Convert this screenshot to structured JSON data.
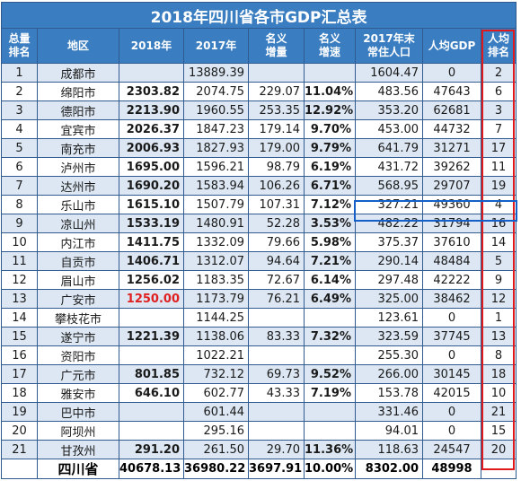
{
  "title": "2018年四川省各市GDP汇总表",
  "headers": {
    "rank": [
      "总量",
      "排名"
    ],
    "region": "地区",
    "gdp2018": "2018年",
    "gdp2017": "2017年",
    "nominal_increase": [
      "名义",
      "增量"
    ],
    "nominal_growth": [
      "名义",
      "增速"
    ],
    "population": [
      "2017年末",
      "常住人口"
    ],
    "per_capita": "人均GDP",
    "per_capita_rank": [
      "人均",
      "排名"
    ]
  },
  "rows": [
    {
      "rank": "1",
      "region": "成都市",
      "gdp2018": "",
      "gdp2017": "13889.39",
      "increase": "",
      "growth": "",
      "population": "1604.47",
      "per_capita": "0",
      "pc_rank": "2"
    },
    {
      "rank": "2",
      "region": "绵阳市",
      "gdp2018": "2303.82",
      "gdp2017": "2074.75",
      "increase": "229.07",
      "growth": "11.04%",
      "population": "483.56",
      "per_capita": "47643",
      "pc_rank": "6"
    },
    {
      "rank": "3",
      "region": "德阳市",
      "gdp2018": "2213.90",
      "gdp2017": "1960.55",
      "increase": "253.35",
      "growth": "12.92%",
      "population": "353.20",
      "per_capita": "62681",
      "pc_rank": "3"
    },
    {
      "rank": "4",
      "region": "宜宾市",
      "gdp2018": "2026.37",
      "gdp2017": "1847.23",
      "increase": "179.14",
      "growth": "9.70%",
      "population": "453.00",
      "per_capita": "44732",
      "pc_rank": "7"
    },
    {
      "rank": "5",
      "region": "南充市",
      "gdp2018": "2006.93",
      "gdp2017": "1827.93",
      "increase": "179.00",
      "growth": "9.79%",
      "population": "641.79",
      "per_capita": "31271",
      "pc_rank": "17"
    },
    {
      "rank": "6",
      "region": "泸州市",
      "gdp2018": "1695.00",
      "gdp2017": "1596.21",
      "increase": "98.79",
      "growth": "6.19%",
      "population": "431.72",
      "per_capita": "39262",
      "pc_rank": "11"
    },
    {
      "rank": "7",
      "region": "达州市",
      "gdp2018": "1690.20",
      "gdp2017": "1583.94",
      "increase": "106.26",
      "growth": "6.71%",
      "population": "568.95",
      "per_capita": "29707",
      "pc_rank": "19"
    },
    {
      "rank": "8",
      "region": "乐山市",
      "gdp2018": "1615.10",
      "gdp2017": "1507.79",
      "increase": "107.31",
      "growth": "7.12%",
      "population": "327.21",
      "per_capita": "49360",
      "pc_rank": "4"
    },
    {
      "rank": "9",
      "region": "凉山州",
      "gdp2018": "1533.19",
      "gdp2017": "1480.91",
      "increase": "52.28",
      "growth": "3.53%",
      "population": "482.22",
      "per_capita": "31794",
      "pc_rank": "16"
    },
    {
      "rank": "10",
      "region": "内江市",
      "gdp2018": "1411.75",
      "gdp2017": "1332.09",
      "increase": "79.66",
      "growth": "5.98%",
      "population": "375.37",
      "per_capita": "37610",
      "pc_rank": "14"
    },
    {
      "rank": "11",
      "region": "自贡市",
      "gdp2018": "1406.71",
      "gdp2017": "1312.07",
      "increase": "94.64",
      "growth": "7.21%",
      "population": "290.14",
      "per_capita": "48484",
      "pc_rank": "5"
    },
    {
      "rank": "12",
      "region": "眉山市",
      "gdp2018": "1256.02",
      "gdp2017": "1183.35",
      "increase": "72.67",
      "growth": "6.14%",
      "population": "297.48",
      "per_capita": "42222",
      "pc_rank": "9"
    },
    {
      "rank": "13",
      "region": "广安市",
      "gdp2018": "1250.00",
      "gdp2017": "1173.79",
      "increase": "76.21",
      "growth": "6.49%",
      "population": "325.00",
      "per_capita": "38462",
      "pc_rank": "12",
      "highlight_gdp2018": true
    },
    {
      "rank": "14",
      "region": "攀枝花市",
      "gdp2018": "",
      "gdp2017": "1144.25",
      "increase": "",
      "growth": "",
      "population": "123.61",
      "per_capita": "0",
      "pc_rank": "1"
    },
    {
      "rank": "15",
      "region": "遂宁市",
      "gdp2018": "1221.39",
      "gdp2017": "1138.06",
      "increase": "83.33",
      "growth": "7.32%",
      "population": "323.59",
      "per_capita": "37745",
      "pc_rank": "13"
    },
    {
      "rank": "16",
      "region": "资阳市",
      "gdp2018": "",
      "gdp2017": "1022.21",
      "increase": "",
      "growth": "",
      "population": "255.30",
      "per_capita": "0",
      "pc_rank": "8"
    },
    {
      "rank": "17",
      "region": "广元市",
      "gdp2018": "801.85",
      "gdp2017": "732.12",
      "increase": "69.73",
      "growth": "9.52%",
      "population": "266.00",
      "per_capita": "30145",
      "pc_rank": "18"
    },
    {
      "rank": "18",
      "region": "雅安市",
      "gdp2018": "646.10",
      "gdp2017": "602.77",
      "increase": "43.33",
      "growth": "7.19%",
      "population": "153.78",
      "per_capita": "42015",
      "pc_rank": "10"
    },
    {
      "rank": "19",
      "region": "巴中市",
      "gdp2018": "",
      "gdp2017": "601.44",
      "increase": "",
      "growth": "",
      "population": "331.46",
      "per_capita": "0",
      "pc_rank": "21"
    },
    {
      "rank": "20",
      "region": "阿坝州",
      "gdp2018": "",
      "gdp2017": "295.16",
      "increase": "",
      "growth": "",
      "population": "94.01",
      "per_capita": "0",
      "pc_rank": "15"
    },
    {
      "rank": "21",
      "region": "甘孜州",
      "gdp2018": "291.20",
      "gdp2017": "261.50",
      "increase": "29.70",
      "growth": "11.36%",
      "population": "118.63",
      "per_capita": "24547",
      "pc_rank": "20"
    }
  ],
  "total": {
    "region": "四川省",
    "gdp2018": "40678.13",
    "gdp2017": "36980.22",
    "increase": "3697.91",
    "growth": "10.00%",
    "population": "8302.00",
    "per_capita": "48998"
  },
  "colors": {
    "header_bg": "#3a7ec1",
    "alt_row": "#dce7f3",
    "highlight_red": "#e02020",
    "box_red": "#e0191c",
    "box_blue": "#1460c8"
  }
}
